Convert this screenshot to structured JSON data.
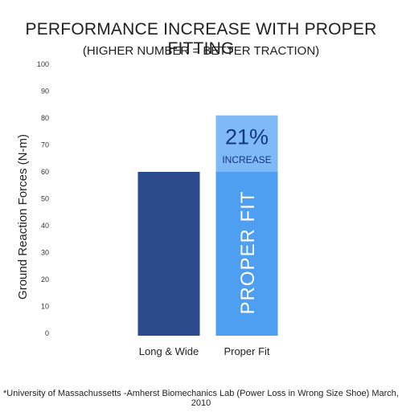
{
  "chart_data": {
    "type": "bar",
    "title": "PERFORMANCE INCREASE WITH PROPER FITTING",
    "subtitle": "(HIGHER NUMBER = BETTER TRACTION)",
    "ylabel": "Ground Reaction Forces (N-m)",
    "xlabel": "",
    "ylim": [
      0,
      100
    ],
    "yticks": [
      0,
      10,
      20,
      30,
      40,
      50,
      60,
      70,
      80,
      90,
      100
    ],
    "categories": [
      "Long & Wide",
      "Proper Fit"
    ],
    "values": [
      60,
      81
    ],
    "proper_fit_base": 60,
    "grid": false,
    "annotation": {
      "percent": "21%",
      "label": "INCREASE"
    },
    "bar_text": "PROPER FIT",
    "footnote": "*University of Massachussetts -Amherst Biomechanics Lab (Power Loss in Wrong Size Shoe) March, 2010",
    "colors": {
      "long_wide": "#2a4a8c",
      "proper_fit_base": "#4e9ef2",
      "proper_fit_increase": "#7fbaf6",
      "annotation_text": "#133a78",
      "bar_text": "#ffffff"
    }
  }
}
